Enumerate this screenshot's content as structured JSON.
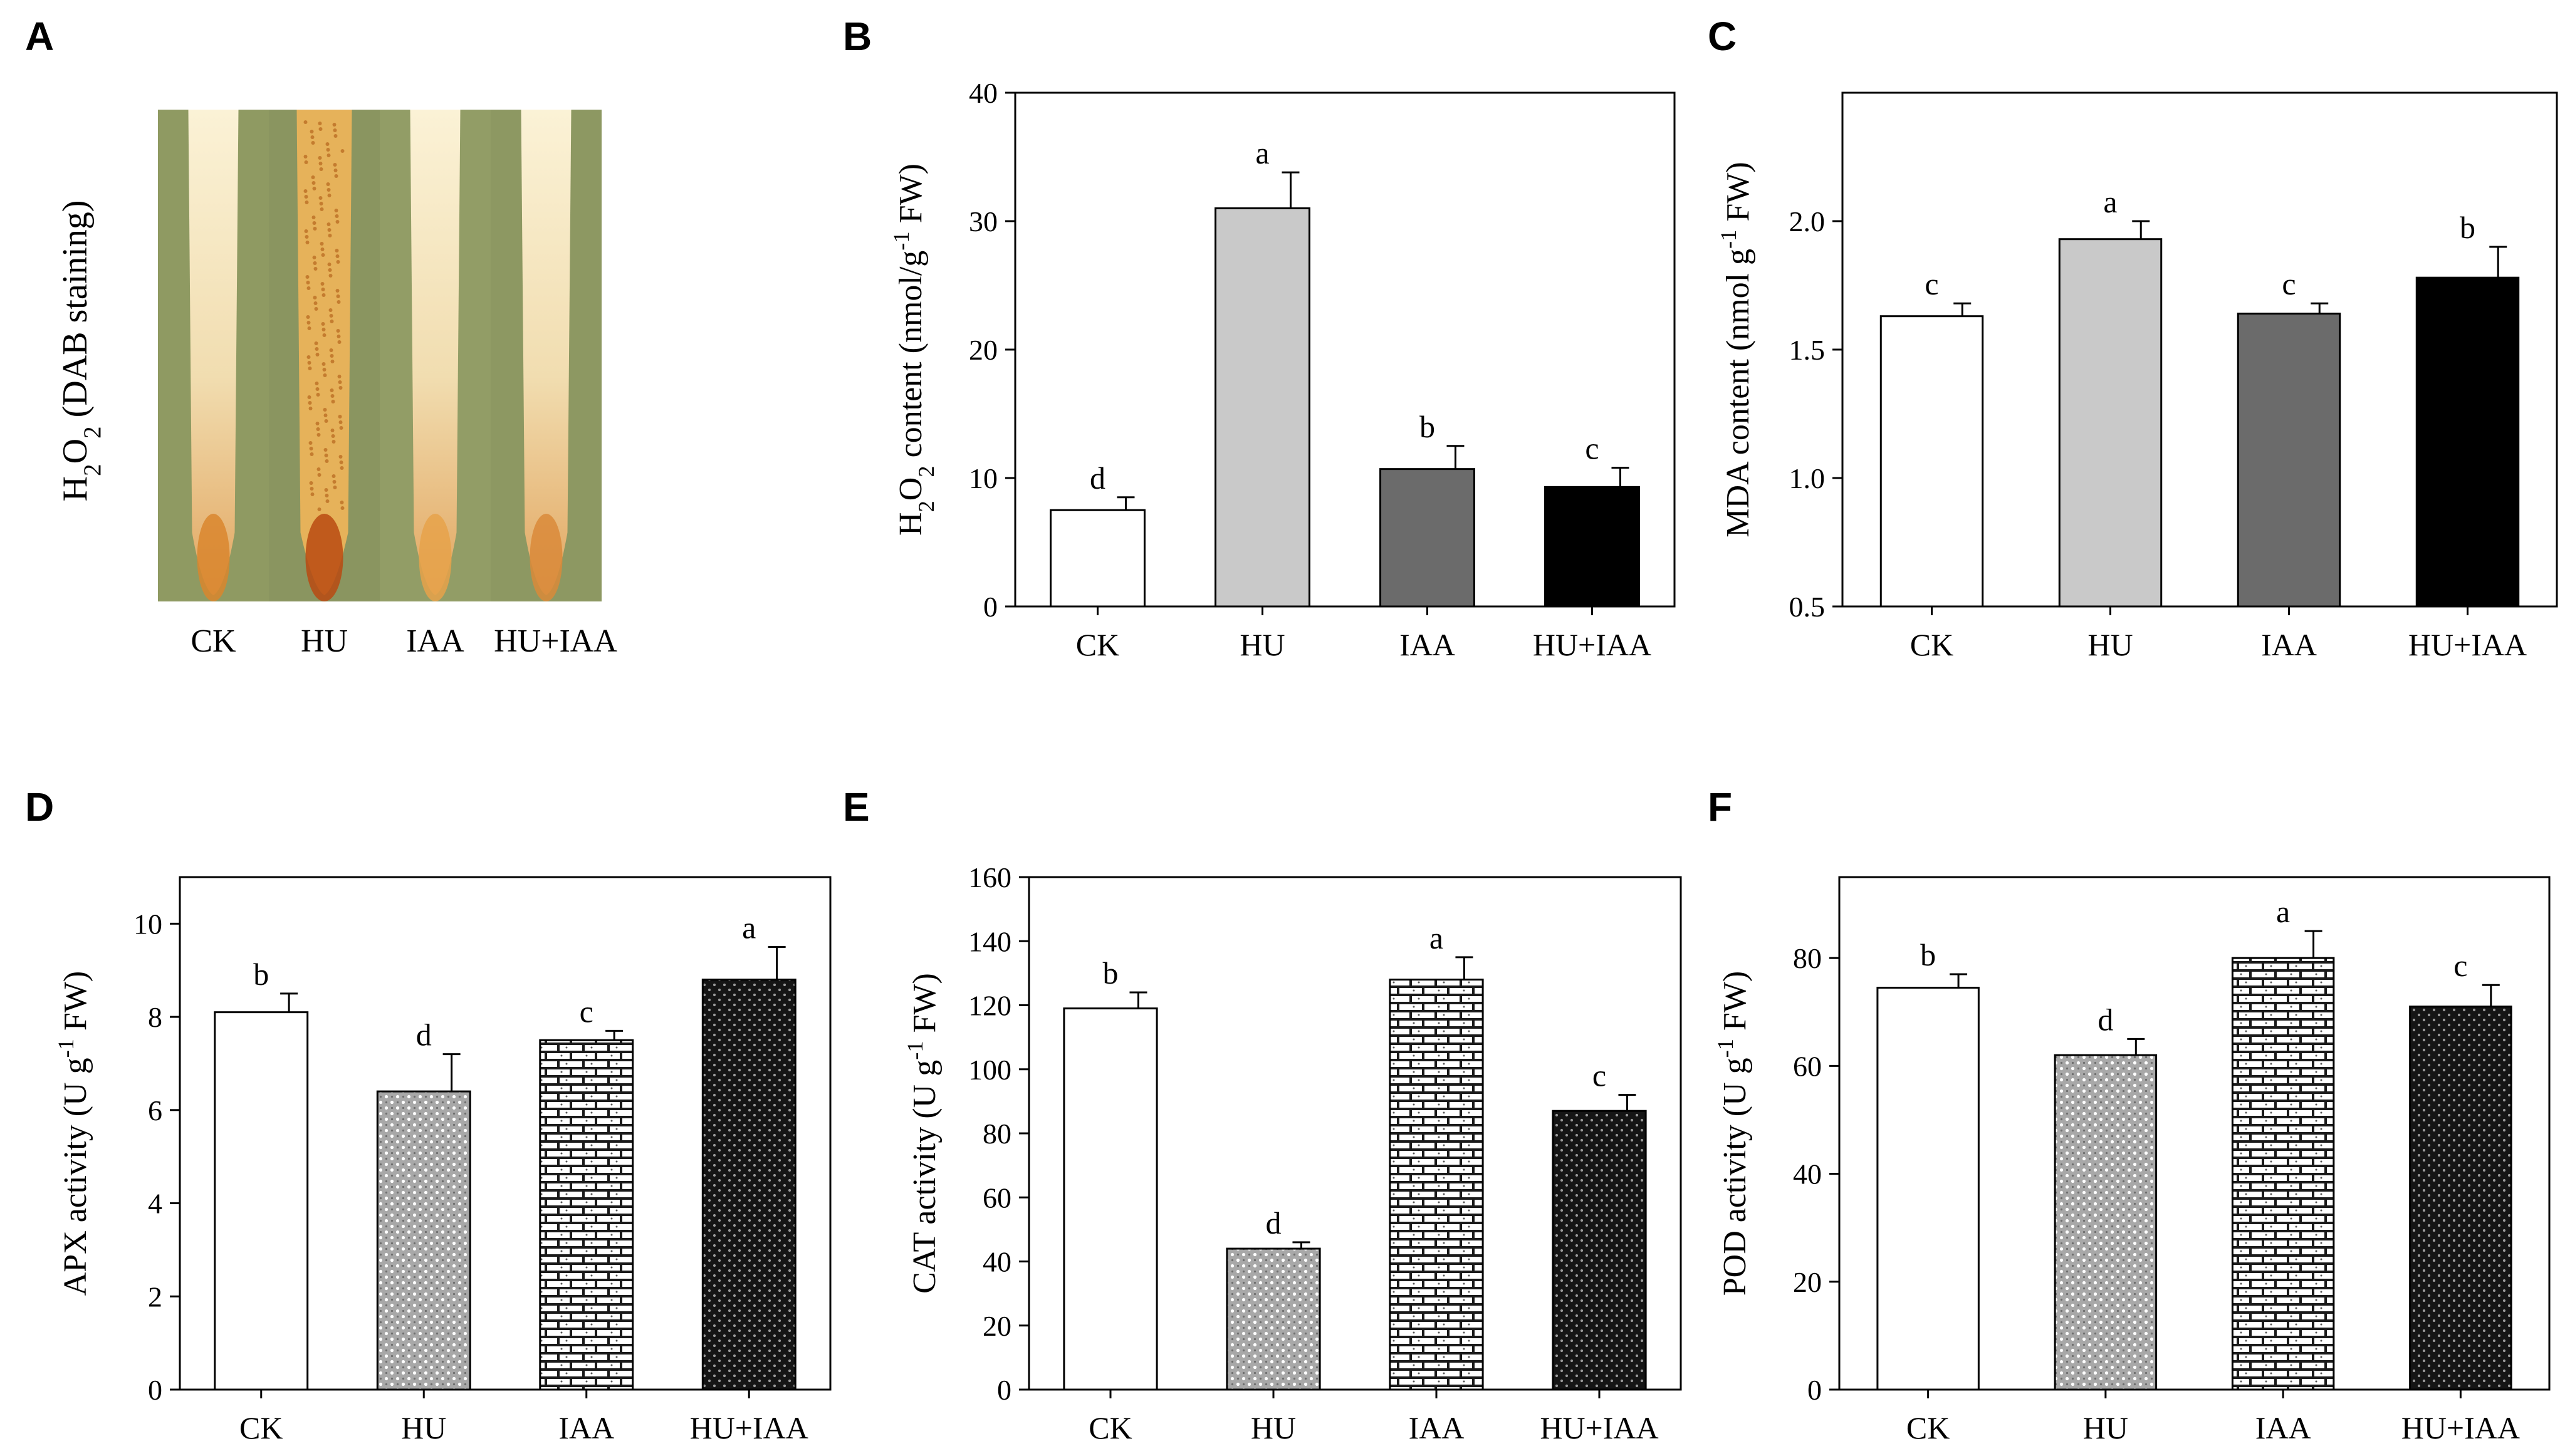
{
  "panels": {
    "A": {
      "letter": "A",
      "ylabel_parts": [
        "H",
        "2",
        "O",
        "2",
        " (DAB staining)"
      ],
      "samples": [
        "CK",
        "HU",
        "IAA",
        "HU+IAA"
      ],
      "strip_colors": [
        "#8f9a62",
        "#8a9560",
        "#929d66",
        "#8d9862"
      ],
      "root_base_color": "#f3e6c4",
      "root_tip_colors": [
        "#d9862e",
        "#b84a12",
        "#e6a24a",
        "#d98a3a"
      ]
    }
  },
  "chart_data": [
    {
      "id": "B",
      "letter": "B",
      "type": "bar",
      "categories": [
        "CK",
        "HU",
        "IAA",
        "HU+IAA"
      ],
      "values": [
        7.5,
        31.0,
        10.7,
        9.3
      ],
      "errors": [
        1.0,
        2.8,
        1.8,
        1.5
      ],
      "sig_letters": [
        "d",
        "a",
        "b",
        "c"
      ],
      "fills": [
        "white",
        "lightgray",
        "darkgray",
        "black"
      ],
      "ylim": [
        0,
        40
      ],
      "yticks": [
        "0",
        "10",
        "20",
        "30",
        "40"
      ],
      "ylabel_parts": [
        "H",
        "2",
        "O",
        "2",
        " content (nmol/g",
        "-1",
        " FW)"
      ],
      "xlabel": "",
      "title": ""
    },
    {
      "id": "C",
      "letter": "C",
      "type": "bar",
      "categories": [
        "CK",
        "HU",
        "IAA",
        "HU+IAA"
      ],
      "values": [
        1.63,
        1.93,
        1.64,
        1.78
      ],
      "errors": [
        0.05,
        0.07,
        0.04,
        0.12
      ],
      "sig_letters": [
        "c",
        "a",
        "c",
        "b"
      ],
      "fills": [
        "white",
        "lightgray",
        "darkgray",
        "black"
      ],
      "ylim": [
        0.5,
        2.5
      ],
      "yticks": [
        "0.5",
        "1.0",
        "1.5",
        "2.0"
      ],
      "ylabel_parts": [
        "MDA content (nmol g",
        "-1",
        " FW)"
      ],
      "xlabel": "",
      "title": ""
    },
    {
      "id": "D",
      "letter": "D",
      "type": "bar",
      "categories": [
        "CK",
        "HU",
        "IAA",
        "HU+IAA"
      ],
      "values": [
        8.1,
        6.4,
        7.5,
        8.8
      ],
      "errors": [
        0.4,
        0.8,
        0.2,
        0.7
      ],
      "sig_letters": [
        "b",
        "d",
        "c",
        "a"
      ],
      "fills": [
        "white",
        "dots",
        "bricks",
        "darkdots"
      ],
      "ylim": [
        0,
        11
      ],
      "yticks": [
        "0",
        "2",
        "4",
        "6",
        "8",
        "10"
      ],
      "ylabel_parts": [
        "APX activity (U g",
        "-1",
        " FW)"
      ],
      "xlabel": "",
      "title": ""
    },
    {
      "id": "E",
      "letter": "E",
      "type": "bar",
      "categories": [
        "CK",
        "HU",
        "IAA",
        "HU+IAA"
      ],
      "values": [
        119,
        44,
        128,
        87
      ],
      "errors": [
        5,
        2,
        7,
        5
      ],
      "sig_letters": [
        "b",
        "d",
        "a",
        "c"
      ],
      "fills": [
        "white",
        "dots",
        "bricks",
        "darkdots"
      ],
      "ylim": [
        0,
        160
      ],
      "yticks": [
        "0",
        "20",
        "40",
        "60",
        "80",
        "100",
        "120",
        "140",
        "160"
      ],
      "ylabel_parts": [
        "CAT activity (U g",
        "-1",
        " FW)"
      ],
      "xlabel": "",
      "title": ""
    },
    {
      "id": "F",
      "letter": "F",
      "type": "bar",
      "categories": [
        "CK",
        "HU",
        "IAA",
        "HU+IAA"
      ],
      "values": [
        74.5,
        62,
        80,
        71
      ],
      "errors": [
        2.5,
        3,
        5,
        4
      ],
      "sig_letters": [
        "b",
        "d",
        "a",
        "c"
      ],
      "fills": [
        "white",
        "dots",
        "bricks",
        "darkdots"
      ],
      "ylim": [
        0,
        95
      ],
      "yticks": [
        "0",
        "20",
        "40",
        "60",
        "80"
      ],
      "ylabel_parts": [
        "POD activity (U g",
        "-1",
        " FW)"
      ],
      "xlabel": "",
      "title": ""
    }
  ]
}
